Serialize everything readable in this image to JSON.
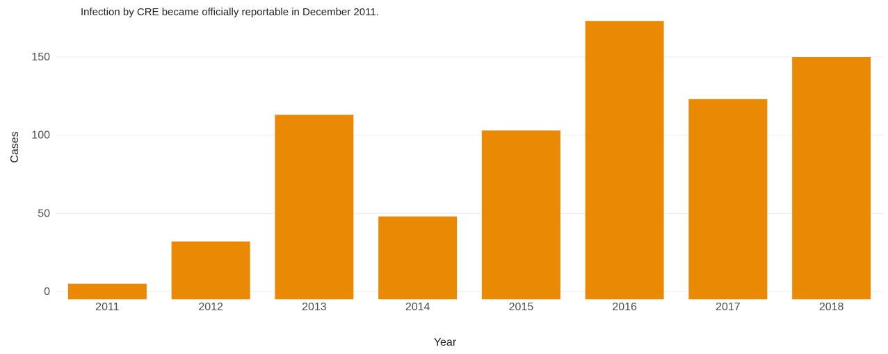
{
  "chart_data": {
    "type": "bar",
    "subtitle": "Infection by CRE became officially reportable in December 2011.",
    "xlabel": "Year",
    "ylabel": "Cases",
    "categories": [
      "2011",
      "2012",
      "2013",
      "2014",
      "2015",
      "2016",
      "2017",
      "2018"
    ],
    "values": [
      5,
      32,
      113,
      48,
      103,
      173,
      123,
      150
    ],
    "ylim": [
      -5,
      173
    ],
    "yticks": [
      "0",
      "50",
      "100",
      "150"
    ],
    "grid": "horizontal",
    "colors": {
      "bar": "#EA8A04",
      "grid": "#EBEBEB",
      "tick_text": "#4D4D4D",
      "axis_title": "#222222"
    }
  }
}
